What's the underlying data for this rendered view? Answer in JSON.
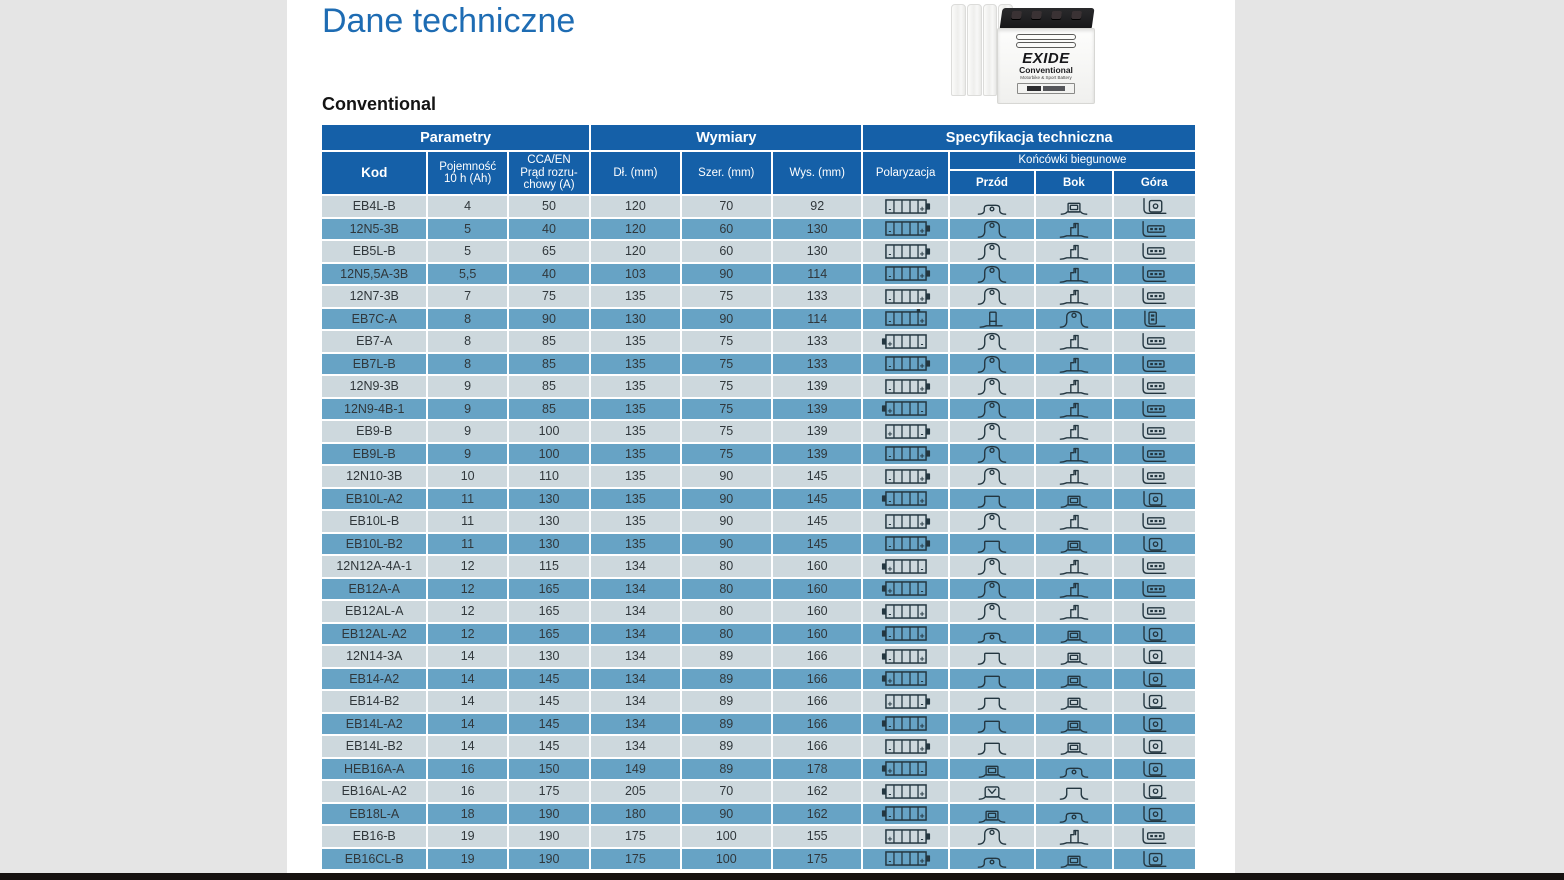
{
  "page": {
    "title": "Dane techniczne",
    "section_title": "Conventional"
  },
  "colors": {
    "header_blue": "#1560a8",
    "row_light": "#cdd8dd",
    "row_blue": "#67a3c5",
    "title_blue": "#1e6cb3",
    "page_bg": "#e5e5e5",
    "bottom_bar": "#161210"
  },
  "battery_photo": {
    "brand": "EXIDE",
    "series": "Conventional",
    "tagline": "Motorbike & Sport Battery"
  },
  "table": {
    "group_headers": [
      {
        "label": "Parametry"
      },
      {
        "label": "Wymiary"
      },
      {
        "label": "Specyfikacja techniczna"
      }
    ],
    "sub_headers": {
      "kod": "Kod",
      "pojemnosc": "Pojemność\n10 h (Ah)",
      "cca": "CCA/EN\nPrąd rozru-\nchowy (A)",
      "dl": "Dł. (mm)",
      "szer": "Szer. (mm)",
      "wys": "Wys. (mm)",
      "polaryzacja": "Polaryzacja",
      "koncowki": "Końcówki biegunowe",
      "przod": "Przód",
      "bok": "Bok",
      "gora": "Góra"
    },
    "rows": [
      {
        "kod": "EB4L-B",
        "pojemnosc": "4",
        "cca": "50",
        "dl": "120",
        "szer": "70",
        "wys": "92",
        "polaryzacja": {
          "left": "-",
          "right": "+",
          "bump": "right"
        },
        "przod": "low-round-post",
        "bok": "socket-block",
        "gora": "top-square-round"
      },
      {
        "kod": "12N5-3B",
        "pojemnosc": "5",
        "cca": "40",
        "dl": "120",
        "szer": "60",
        "wys": "130",
        "polaryzacja": {
          "left": "-",
          "right": "+",
          "bump": "right"
        },
        "przod": "round-post",
        "bok": "bolt-step",
        "gora": "top-bar-3seg"
      },
      {
        "kod": "EB5L-B",
        "pojemnosc": "5",
        "cca": "65",
        "dl": "120",
        "szer": "60",
        "wys": "130",
        "polaryzacja": {
          "left": "-",
          "right": "+",
          "bump": "right"
        },
        "przod": "round-post",
        "bok": "bolt-step",
        "gora": "top-bar-3seg"
      },
      {
        "kod": "12N5,5A-3B",
        "pojemnosc": "5,5",
        "cca": "40",
        "dl": "103",
        "szer": "90",
        "wys": "114",
        "polaryzacja": {
          "left": "-",
          "right": "+",
          "bump": "right"
        },
        "przod": "round-post",
        "bok": "bolt-step",
        "gora": "top-bar-3seg"
      },
      {
        "kod": "12N7-3B",
        "pojemnosc": "7",
        "cca": "75",
        "dl": "135",
        "szer": "75",
        "wys": "133",
        "polaryzacja": {
          "left": "-",
          "right": "+",
          "bump": "right"
        },
        "przod": "round-post",
        "bok": "bolt-step",
        "gora": "top-bar-3seg"
      },
      {
        "kod": "EB7C-A",
        "pojemnosc": "8",
        "cca": "90",
        "dl": "130",
        "szer": "90",
        "wys": "114",
        "polaryzacja": {
          "left": "-",
          "right": "+",
          "bump": "top"
        },
        "przod": "vertical-plate",
        "bok": "round-post",
        "gora": "top-vertical-bar"
      },
      {
        "kod": "EB7-A",
        "pojemnosc": "8",
        "cca": "85",
        "dl": "135",
        "szer": "75",
        "wys": "133",
        "polaryzacja": {
          "left": "+",
          "right": "-",
          "bump": "left"
        },
        "przod": "round-post",
        "bok": "bolt-step",
        "gora": "top-bar-3seg"
      },
      {
        "kod": "EB7L-B",
        "pojemnosc": "8",
        "cca": "85",
        "dl": "135",
        "szer": "75",
        "wys": "133",
        "polaryzacja": {
          "left": "-",
          "right": "+",
          "bump": "right"
        },
        "przod": "round-post",
        "bok": "bolt-step",
        "gora": "top-bar-3seg"
      },
      {
        "kod": "12N9-3B",
        "pojemnosc": "9",
        "cca": "85",
        "dl": "135",
        "szer": "75",
        "wys": "139",
        "polaryzacja": {
          "left": "-",
          "right": "+",
          "bump": "right"
        },
        "przod": "round-post",
        "bok": "bolt-step",
        "gora": "top-bar-3seg"
      },
      {
        "kod": "12N9-4B-1",
        "pojemnosc": "9",
        "cca": "85",
        "dl": "135",
        "szer": "75",
        "wys": "139",
        "polaryzacja": {
          "left": "+",
          "right": "-",
          "bump": "left"
        },
        "przod": "round-post",
        "bok": "bolt-step",
        "gora": "top-bar-3seg"
      },
      {
        "kod": "EB9-B",
        "pojemnosc": "9",
        "cca": "100",
        "dl": "135",
        "szer": "75",
        "wys": "139",
        "polaryzacja": {
          "left": "+",
          "right": "-",
          "bump": "right"
        },
        "przod": "round-post",
        "bok": "bolt-step",
        "gora": "top-bar-3seg"
      },
      {
        "kod": "EB9L-B",
        "pojemnosc": "9",
        "cca": "100",
        "dl": "135",
        "szer": "75",
        "wys": "139",
        "polaryzacja": {
          "left": "-",
          "right": "+",
          "bump": "right"
        },
        "przod": "round-post",
        "bok": "bolt-step",
        "gora": "top-bar-3seg"
      },
      {
        "kod": "12N10-3B",
        "pojemnosc": "10",
        "cca": "110",
        "dl": "135",
        "szer": "90",
        "wys": "145",
        "polaryzacja": {
          "left": "-",
          "right": "+",
          "bump": "right"
        },
        "przod": "round-post",
        "bok": "bolt-step",
        "gora": "top-bar-3seg"
      },
      {
        "kod": "EB10L-A2",
        "pojemnosc": "11",
        "cca": "130",
        "dl": "135",
        "szer": "90",
        "wys": "145",
        "polaryzacja": {
          "left": "-",
          "right": "+",
          "bump": "left"
        },
        "przod": "flat-block",
        "bok": "socket-block",
        "gora": "top-square-round"
      },
      {
        "kod": "EB10L-B",
        "pojemnosc": "11",
        "cca": "130",
        "dl": "135",
        "szer": "90",
        "wys": "145",
        "polaryzacja": {
          "left": "-",
          "right": "+",
          "bump": "right"
        },
        "przod": "round-post",
        "bok": "bolt-step",
        "gora": "top-bar-3seg"
      },
      {
        "kod": "EB10L-B2",
        "pojemnosc": "11",
        "cca": "130",
        "dl": "135",
        "szer": "90",
        "wys": "145",
        "polaryzacja": {
          "left": "-",
          "right": "+",
          "bump": "right"
        },
        "przod": "flat-block",
        "bok": "socket-block",
        "gora": "top-square-round"
      },
      {
        "kod": "12N12A-4A-1",
        "pojemnosc": "12",
        "cca": "115",
        "dl": "134",
        "szer": "80",
        "wys": "160",
        "polaryzacja": {
          "left": "+",
          "right": "-",
          "bump": "left"
        },
        "przod": "round-post",
        "bok": "bolt-step",
        "gora": "top-bar-3seg"
      },
      {
        "kod": "EB12A-A",
        "pojemnosc": "12",
        "cca": "165",
        "dl": "134",
        "szer": "80",
        "wys": "160",
        "polaryzacja": {
          "left": "+",
          "right": "-",
          "bump": "left"
        },
        "przod": "round-post",
        "bok": "bolt-step",
        "gora": "top-bar-3seg"
      },
      {
        "kod": "EB12AL-A",
        "pojemnosc": "12",
        "cca": "165",
        "dl": "134",
        "szer": "80",
        "wys": "160",
        "polaryzacja": {
          "left": "-",
          "right": "+",
          "bump": "left"
        },
        "przod": "round-post",
        "bok": "bolt-step",
        "gora": "top-bar-3seg"
      },
      {
        "kod": "EB12AL-A2",
        "pojemnosc": "12",
        "cca": "165",
        "dl": "134",
        "szer": "80",
        "wys": "160",
        "polaryzacja": {
          "left": "-",
          "right": "+",
          "bump": "left"
        },
        "przod": "low-round-post",
        "bok": "socket-block",
        "gora": "top-square-round"
      },
      {
        "kod": "12N14-3A",
        "pojemnosc": "14",
        "cca": "130",
        "dl": "134",
        "szer": "89",
        "wys": "166",
        "polaryzacja": {
          "left": "-",
          "right": "+",
          "bump": "left"
        },
        "przod": "flat-block",
        "bok": "socket-block",
        "gora": "top-square-round"
      },
      {
        "kod": "EB14-A2",
        "pojemnosc": "14",
        "cca": "145",
        "dl": "134",
        "szer": "89",
        "wys": "166",
        "polaryzacja": {
          "left": "+",
          "right": "-",
          "bump": "left"
        },
        "przod": "flat-block",
        "bok": "socket-block",
        "gora": "top-square-round"
      },
      {
        "kod": "EB14-B2",
        "pojemnosc": "14",
        "cca": "145",
        "dl": "134",
        "szer": "89",
        "wys": "166",
        "polaryzacja": {
          "left": "+",
          "right": "-",
          "bump": "right"
        },
        "przod": "flat-block",
        "bok": "socket-block",
        "gora": "top-square-round"
      },
      {
        "kod": "EB14L-A2",
        "pojemnosc": "14",
        "cca": "145",
        "dl": "134",
        "szer": "89",
        "wys": "166",
        "polaryzacja": {
          "left": "-",
          "right": "+",
          "bump": "left"
        },
        "przod": "flat-block",
        "bok": "socket-block",
        "gora": "top-square-round"
      },
      {
        "kod": "EB14L-B2",
        "pojemnosc": "14",
        "cca": "145",
        "dl": "134",
        "szer": "89",
        "wys": "166",
        "polaryzacja": {
          "left": "-",
          "right": "+",
          "bump": "right"
        },
        "przod": "flat-block",
        "bok": "socket-block",
        "gora": "top-square-round"
      },
      {
        "kod": "HEB16A-A",
        "pojemnosc": "16",
        "cca": "150",
        "dl": "149",
        "szer": "89",
        "wys": "178",
        "polaryzacja": {
          "left": "+",
          "right": "-",
          "bump": "left"
        },
        "przod": "socket-block",
        "bok": "low-round-post",
        "gora": "top-square-round"
      },
      {
        "kod": "EB16AL-A2",
        "pojemnosc": "16",
        "cca": "175",
        "dl": "205",
        "szer": "70",
        "wys": "162",
        "polaryzacja": {
          "left": "-",
          "right": "+",
          "bump": "left"
        },
        "przod": "wing-block",
        "bok": "flat-block",
        "gora": "top-square-round"
      },
      {
        "kod": "EB18L-A",
        "pojemnosc": "18",
        "cca": "190",
        "dl": "180",
        "szer": "90",
        "wys": "162",
        "polaryzacja": {
          "left": "-",
          "right": "+",
          "bump": "left"
        },
        "przod": "socket-block",
        "bok": "low-round-post",
        "gora": "top-square-round"
      },
      {
        "kod": "EB16-B",
        "pojemnosc": "19",
        "cca": "190",
        "dl": "175",
        "szer": "100",
        "wys": "155",
        "polaryzacja": {
          "left": "+",
          "right": "-",
          "bump": "right"
        },
        "przod": "round-post",
        "bok": "bolt-step",
        "gora": "top-bar-3seg"
      },
      {
        "kod": "EB16CL-B",
        "pojemnosc": "19",
        "cca": "190",
        "dl": "175",
        "szer": "100",
        "wys": "175",
        "polaryzacja": {
          "left": "-",
          "right": "+",
          "bump": "right"
        },
        "przod": "low-round-post",
        "bok": "socket-block",
        "gora": "top-square-round"
      }
    ]
  }
}
